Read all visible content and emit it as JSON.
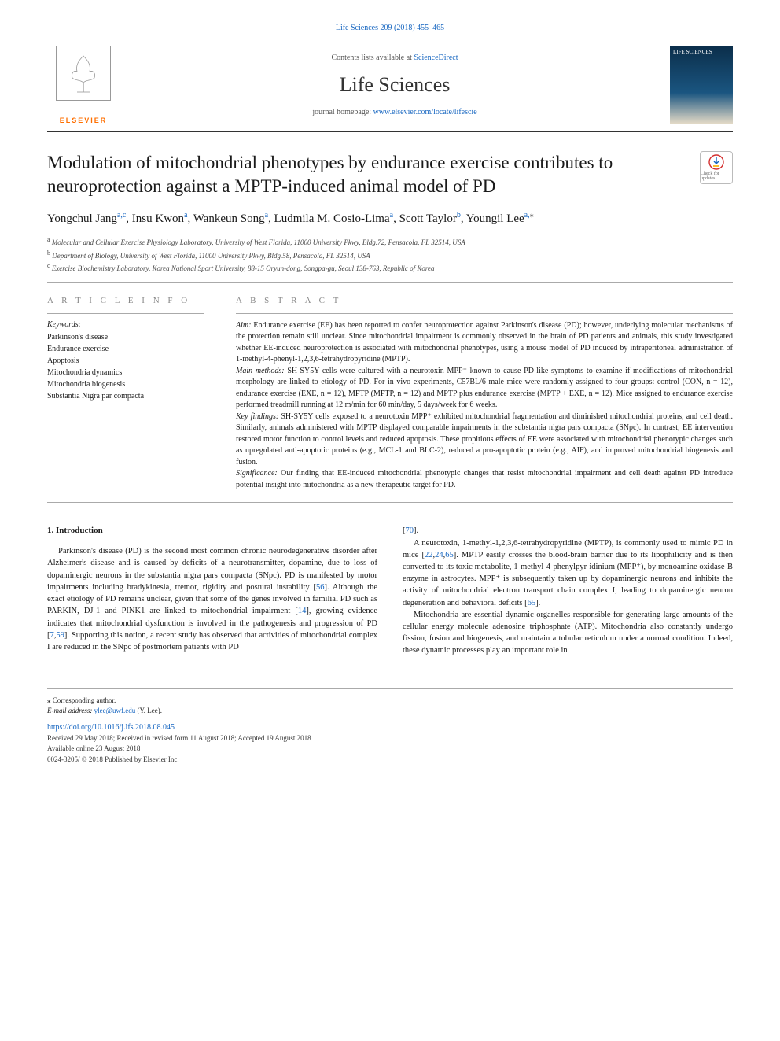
{
  "journal_ref_top": "Life Sciences 209 (2018) 455–465",
  "header": {
    "contents_prefix": "Contents lists available at ",
    "contents_link": "ScienceDirect",
    "journal_name": "Life Sciences",
    "homepage_prefix": "journal homepage: ",
    "homepage_link": "www.elsevier.com/locate/lifescie",
    "elsevier_text": "ELSEVIER",
    "cover_text": "LIFE SCIENCES"
  },
  "title": "Modulation of mitochondrial phenotypes by endurance exercise contributes to neuroprotection against a MPTP-induced animal model of PD",
  "updates_badge": "Check for updates",
  "authors_html": "Yongchul Jang<sup>a,c</sup>, Insu Kwon<sup>a</sup>, Wankeun Song<sup>a</sup>, Ludmila M. Cosio-Lima<sup>a</sup>, Scott Taylor<sup>b</sup>, Youngil Lee<sup>a,</sup><sup class=\"star\">⁎</sup>",
  "affiliations": [
    {
      "sup": "a",
      "text": "Molecular and Cellular Exercise Physiology Laboratory, University of West Florida, 11000 University Pkwy, Bldg.72, Pensacola, FL 32514, USA"
    },
    {
      "sup": "b",
      "text": "Department of Biology, University of West Florida, 11000 University Pkwy, Bldg.58, Pensacola, FL 32514, USA"
    },
    {
      "sup": "c",
      "text": "Exercise Biochemistry Laboratory, Korea National Sport University, 88-15 Oryun-dong, Songpa-gu, Seoul 138-763, Republic of Korea"
    }
  ],
  "article_info_header": "A R T I C L E  I N F O",
  "abstract_header": "A B S T R A C T",
  "keywords_label": "Keywords:",
  "keywords": [
    "Parkinson's disease",
    "Endurance exercise",
    "Apoptosis",
    "Mitochondria dynamics",
    "Mitochondria biogenesis",
    "Substantia Nigra par compacta"
  ],
  "abstract": {
    "aim_label": "Aim:",
    "aim": " Endurance exercise (EE) has been reported to confer neuroprotection against Parkinson's disease (PD); however, underlying molecular mechanisms of the protection remain still unclear. Since mitochondrial impairment is commonly observed in the brain of PD patients and animals, this study investigated whether EE-induced neuroprotection is associated with mitochondrial phenotypes, using a mouse model of PD induced by intraperitoneal administration of 1-methyl-4-phenyl-1,2,3,6-tetrahydropyridine (MPTP).",
    "methods_label": "Main methods:",
    "methods": " SH-SY5Y cells were cultured with a neurotoxin MPP⁺ known to cause PD-like symptoms to examine if modifications of mitochondrial morphology are linked to etiology of PD. For in vivo experiments, C57BL/6 male mice were randomly assigned to four groups: control (CON, n = 12), endurance exercise (EXE, n = 12), MPTP (MPTP, n = 12) and MPTP plus endurance exercise (MPTP + EXE, n = 12). Mice assigned to endurance exercise performed treadmill running at 12 m/min for 60 min/day, 5 days/week for 6 weeks.",
    "findings_label": "Key findings:",
    "findings": " SH-SY5Y cells exposed to a neurotoxin MPP⁺ exhibited mitochondrial fragmentation and diminished mitochondrial proteins, and cell death. Similarly, animals administered with MPTP displayed comparable impairments in the substantia nigra pars compacta (SNpc). In contrast, EE intervention restored motor function to control levels and reduced apoptosis. These propitious effects of EE were associated with mitochondrial phenotypic changes such as upregulated anti-apoptotic proteins (e.g., MCL-1 and BLC-2), reduced a pro-apoptotic protein (e.g., AIF), and improved mitochondrial biogenesis and fusion.",
    "significance_label": "Significance:",
    "significance": " Our finding that EE-induced mitochondrial phenotypic changes that resist mitochondrial impairment and cell death against PD introduce potential insight into mitochondria as a new therapeutic target for PD."
  },
  "intro_heading": "1. Introduction",
  "intro_col1": "Parkinson's disease (PD) is the second most common chronic neurodegenerative disorder after Alzheimer's disease and is caused by deficits of a neurotransmitter, dopamine, due to loss of dopaminergic neurons in the substantia nigra pars compacta (SNpc). PD is manifested by motor impairments including bradykinesia, tremor, rigidity and postural instability [<a class=\"ref\">56</a>]. Although the exact etiology of PD remains unclear, given that some of the genes involved in familial PD such as PARKIN, DJ-1 and PINK1 are linked to mitochondrial impairment [<a class=\"ref\">14</a>], growing evidence indicates that mitochondrial dysfunction is involved in the pathogenesis and progression of PD [<a class=\"ref\">7</a>,<a class=\"ref\">59</a>]. Supporting this notion, a recent study has observed that activities of mitochondrial complex I are reduced in the SNpc of postmortem patients with PD",
  "intro_col2_top": "[<a class=\"ref\">70</a>].",
  "intro_col2_p2": "A neurotoxin, 1-methyl-1,2,3,6-tetrahydropyridine (MPTP), is commonly used to mimic PD in mice [<a class=\"ref\">22</a>,<a class=\"ref\">24</a>,<a class=\"ref\">65</a>]. MPTP easily crosses the blood-brain barrier due to its lipophilicity and is then converted to its toxic metabolite, 1-methyl-4-phenylpyr-idinium (MPP⁺), by monoamine oxidase-B enzyme in astrocytes. MPP⁺ is subsequently taken up by dopaminergic neurons and inhibits the activity of mitochondrial electron transport chain complex I, leading to dopaminergic neuron degeneration and behavioral deficits [<a class=\"ref\">65</a>].",
  "intro_col2_p3": "Mitochondria are essential dynamic organelles responsible for generating large amounts of the cellular energy molecule adenosine triphosphate (ATP). Mitochondria also constantly undergo fission, fusion and biogenesis, and maintain a tubular reticulum under a normal condition. Indeed, these dynamic processes play an important role in",
  "footer": {
    "corr": "⁎ Corresponding author.",
    "email_label": "E-mail address: ",
    "email": "ylee@uwf.edu",
    "email_suffix": " (Y. Lee).",
    "doi": "https://doi.org/10.1016/j.lfs.2018.08.045",
    "received": "Received 29 May 2018; Received in revised form 11 August 2018; Accepted 19 August 2018",
    "available": "Available online 23 August 2018",
    "copyright": "0024-3205/ © 2018 Published by Elsevier Inc."
  },
  "colors": {
    "link": "#1565c0",
    "elsevier_orange": "#ff6f00",
    "text": "#1a1a1a",
    "muted": "#888"
  }
}
